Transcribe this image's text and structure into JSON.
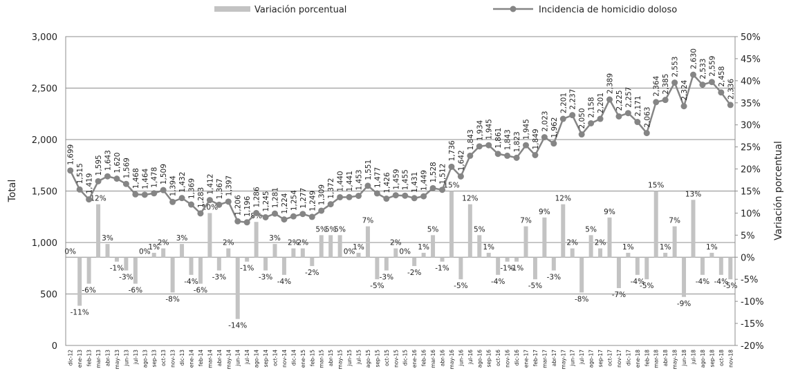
{
  "chart_data": {
    "type": "combo",
    "categories": [
      "dic-12",
      "ene-13",
      "feb-13",
      "mar-13",
      "abr-13",
      "may-13",
      "jun-13",
      "jul-13",
      "ago-13",
      "sep-13",
      "oct-13",
      "nov-13",
      "dic-13",
      "ene-14",
      "feb-14",
      "mar-14",
      "abr-14",
      "may-14",
      "jun-14",
      "jul-14",
      "ago-14",
      "sep-14",
      "oct-14",
      "nov-14",
      "dic-14",
      "ene-15",
      "feb-15",
      "mar-15",
      "abr-15",
      "may-15",
      "jun-15",
      "jul-15",
      "ago-15",
      "sep-15",
      "oct-15",
      "nov-15",
      "dic-15",
      "ene-16",
      "feb-16",
      "mar-16",
      "abr-16",
      "may-16",
      "jun-16",
      "jul-16",
      "ago-16",
      "sep-16",
      "oct-16",
      "nov-16",
      "dic-16",
      "ene-17",
      "feb-17",
      "mar-17",
      "abr-17",
      "may-17",
      "jun-17",
      "jul-17",
      "ago-17",
      "sep-17",
      "oct-17",
      "nov-17",
      "dic-17",
      "ene-18",
      "feb-18",
      "mar-18",
      "abr-18",
      "may-18",
      "jun-18",
      "jul-18",
      "ago-18",
      "sep-18",
      "oct-18",
      "nov-18"
    ],
    "series": [
      {
        "name": "Variación porcentual",
        "type": "bar",
        "axis": "y2",
        "color": "#c3c3c3",
        "values": [
          0,
          -11,
          -6,
          12,
          3,
          -1,
          -3,
          -6,
          0,
          1,
          2,
          -8,
          3,
          -4,
          -6,
          10,
          -3,
          2,
          -14,
          -1,
          8,
          -3,
          3,
          -4,
          2,
          2,
          -2,
          5,
          5,
          5,
          0,
          1,
          7,
          -5,
          -3,
          2,
          0,
          -2,
          1,
          5,
          -1,
          15,
          -5,
          12,
          5,
          1,
          -4,
          -1,
          -1,
          7,
          -5,
          9,
          -3,
          12,
          2,
          -8,
          5,
          2,
          9,
          -7,
          1,
          -4,
          -5,
          15,
          1,
          7,
          -9,
          13,
          -4,
          1,
          -4,
          -5
        ],
        "value_labels": [
          "0%",
          "-11%",
          "-6%",
          "12%",
          "3%",
          "-1%",
          "-3%",
          "-6%",
          "0%",
          "1%",
          "2%",
          "-8%",
          "3%",
          "-4%",
          "-6%",
          "10%",
          "-3%",
          "2%",
          "-14%",
          "-1%",
          "8%",
          "-3%",
          "3%",
          "-4%",
          "2%",
          "2%",
          "-2%",
          "5%",
          "5%",
          "5%",
          "0%",
          "1%",
          "7%",
          "-5%",
          "-3%",
          "2%",
          "0%",
          "-2%",
          "1%",
          "5%",
          "-1%",
          "15%",
          "-5%",
          "12%",
          "5%",
          "1%",
          "-4%",
          "-1%",
          "-1%",
          "7%",
          "-5%",
          "9%",
          "-3%",
          "12%",
          "2%",
          "-8%",
          "5%",
          "2%",
          "9%",
          "-7%",
          "1%",
          "-4%",
          "-5%",
          "15%",
          "1%",
          "7%",
          "-9%",
          "13%",
          "-4%",
          "1%",
          "-4%",
          "-5%"
        ]
      },
      {
        "name": "Incidencia de homicidio doloso",
        "type": "line",
        "color": "#858585",
        "values": [
          1699,
          1515,
          1419,
          1595,
          1643,
          1620,
          1569,
          1468,
          1464,
          1478,
          1509,
          1394,
          1432,
          1369,
          1283,
          1412,
          1367,
          1397,
          1206,
          1196,
          1286,
          1245,
          1281,
          1224,
          1254,
          1277,
          1249,
          1309,
          1372,
          1440,
          1441,
          1453,
          1551,
          1477,
          1426,
          1459,
          1455,
          1431,
          1449,
          1528,
          1512,
          1736,
          1642,
          1843,
          1934,
          1945,
          1861,
          1843,
          1823,
          1945,
          1849,
          2023,
          1962,
          2201,
          2237,
          2050,
          2158,
          2201,
          2389,
          2225,
          2257,
          2171,
          2063,
          2364,
          2385,
          2553,
          2324,
          2630,
          2533,
          2559,
          2458,
          2336
        ],
        "value_labels": [
          "1,699",
          "1,515",
          "1,419",
          "1,595",
          "1,643",
          "1,620",
          "1,569",
          "1,468",
          "1,464",
          "1,478",
          "1,509",
          "1,394",
          "1,432",
          "1,369",
          "1,283",
          "1,412",
          "1,367",
          "1,397",
          "1,206",
          "1,196",
          "1,286",
          "1,245",
          "1,281",
          "1,224",
          "1,254",
          "1,277",
          "1,249",
          "1,309",
          "1,372",
          "1,440",
          "1,441",
          "1,453",
          "1,551",
          "1,477",
          "1,426",
          "1,459",
          "1,455",
          "1,431",
          "1,449",
          "1,528",
          "1,512",
          "1,736",
          "1,642",
          "1,843",
          "1,934",
          "1,945",
          "1,861",
          "1,843",
          "1,823",
          "1,945",
          "1,849",
          "2,023",
          "1,962",
          "2,201",
          "2,237",
          "2,050",
          "2,158",
          "2,201",
          "2,389",
          "2,225",
          "2,257",
          "2,171",
          "2,063",
          "2,364",
          "2,385",
          "2,553",
          "2,324",
          "2,630",
          "2,533",
          "2,559",
          "2,458",
          "2,336"
        ]
      }
    ],
    "ylabel": "Total",
    "y2label": "Variación porcentual",
    "ylim": [
      0,
      3000
    ],
    "yticks": [
      0,
      500,
      {
        "value": 1000,
        "label": "1,000"
      },
      {
        "value": 1500,
        "label": "1,500"
      },
      {
        "value": 2000,
        "label": "2,000"
      },
      {
        "value": 2500,
        "label": "2,500"
      },
      {
        "value": 3000,
        "label": "3,000"
      }
    ],
    "y2lim": [
      -20,
      50
    ],
    "y2ticks": [
      {
        "value": -20,
        "label": "-20%"
      },
      {
        "value": -15,
        "label": "-15%"
      },
      {
        "value": -10,
        "label": "-10%"
      },
      {
        "value": -5,
        "label": "-5%"
      },
      {
        "value": 0,
        "label": "0%"
      },
      {
        "value": 5,
        "label": "5%"
      },
      {
        "value": 10,
        "label": "10%"
      },
      {
        "value": 15,
        "label": "15%"
      },
      {
        "value": 20,
        "label": "20%"
      },
      {
        "value": 25,
        "label": "25%"
      },
      {
        "value": 30,
        "label": "30%"
      },
      {
        "value": 35,
        "label": "35%"
      },
      {
        "value": 40,
        "label": "40%"
      },
      {
        "value": 45,
        "label": "45%"
      },
      {
        "value": 50,
        "label": "50%"
      }
    ],
    "grid": true,
    "legend": "top"
  }
}
